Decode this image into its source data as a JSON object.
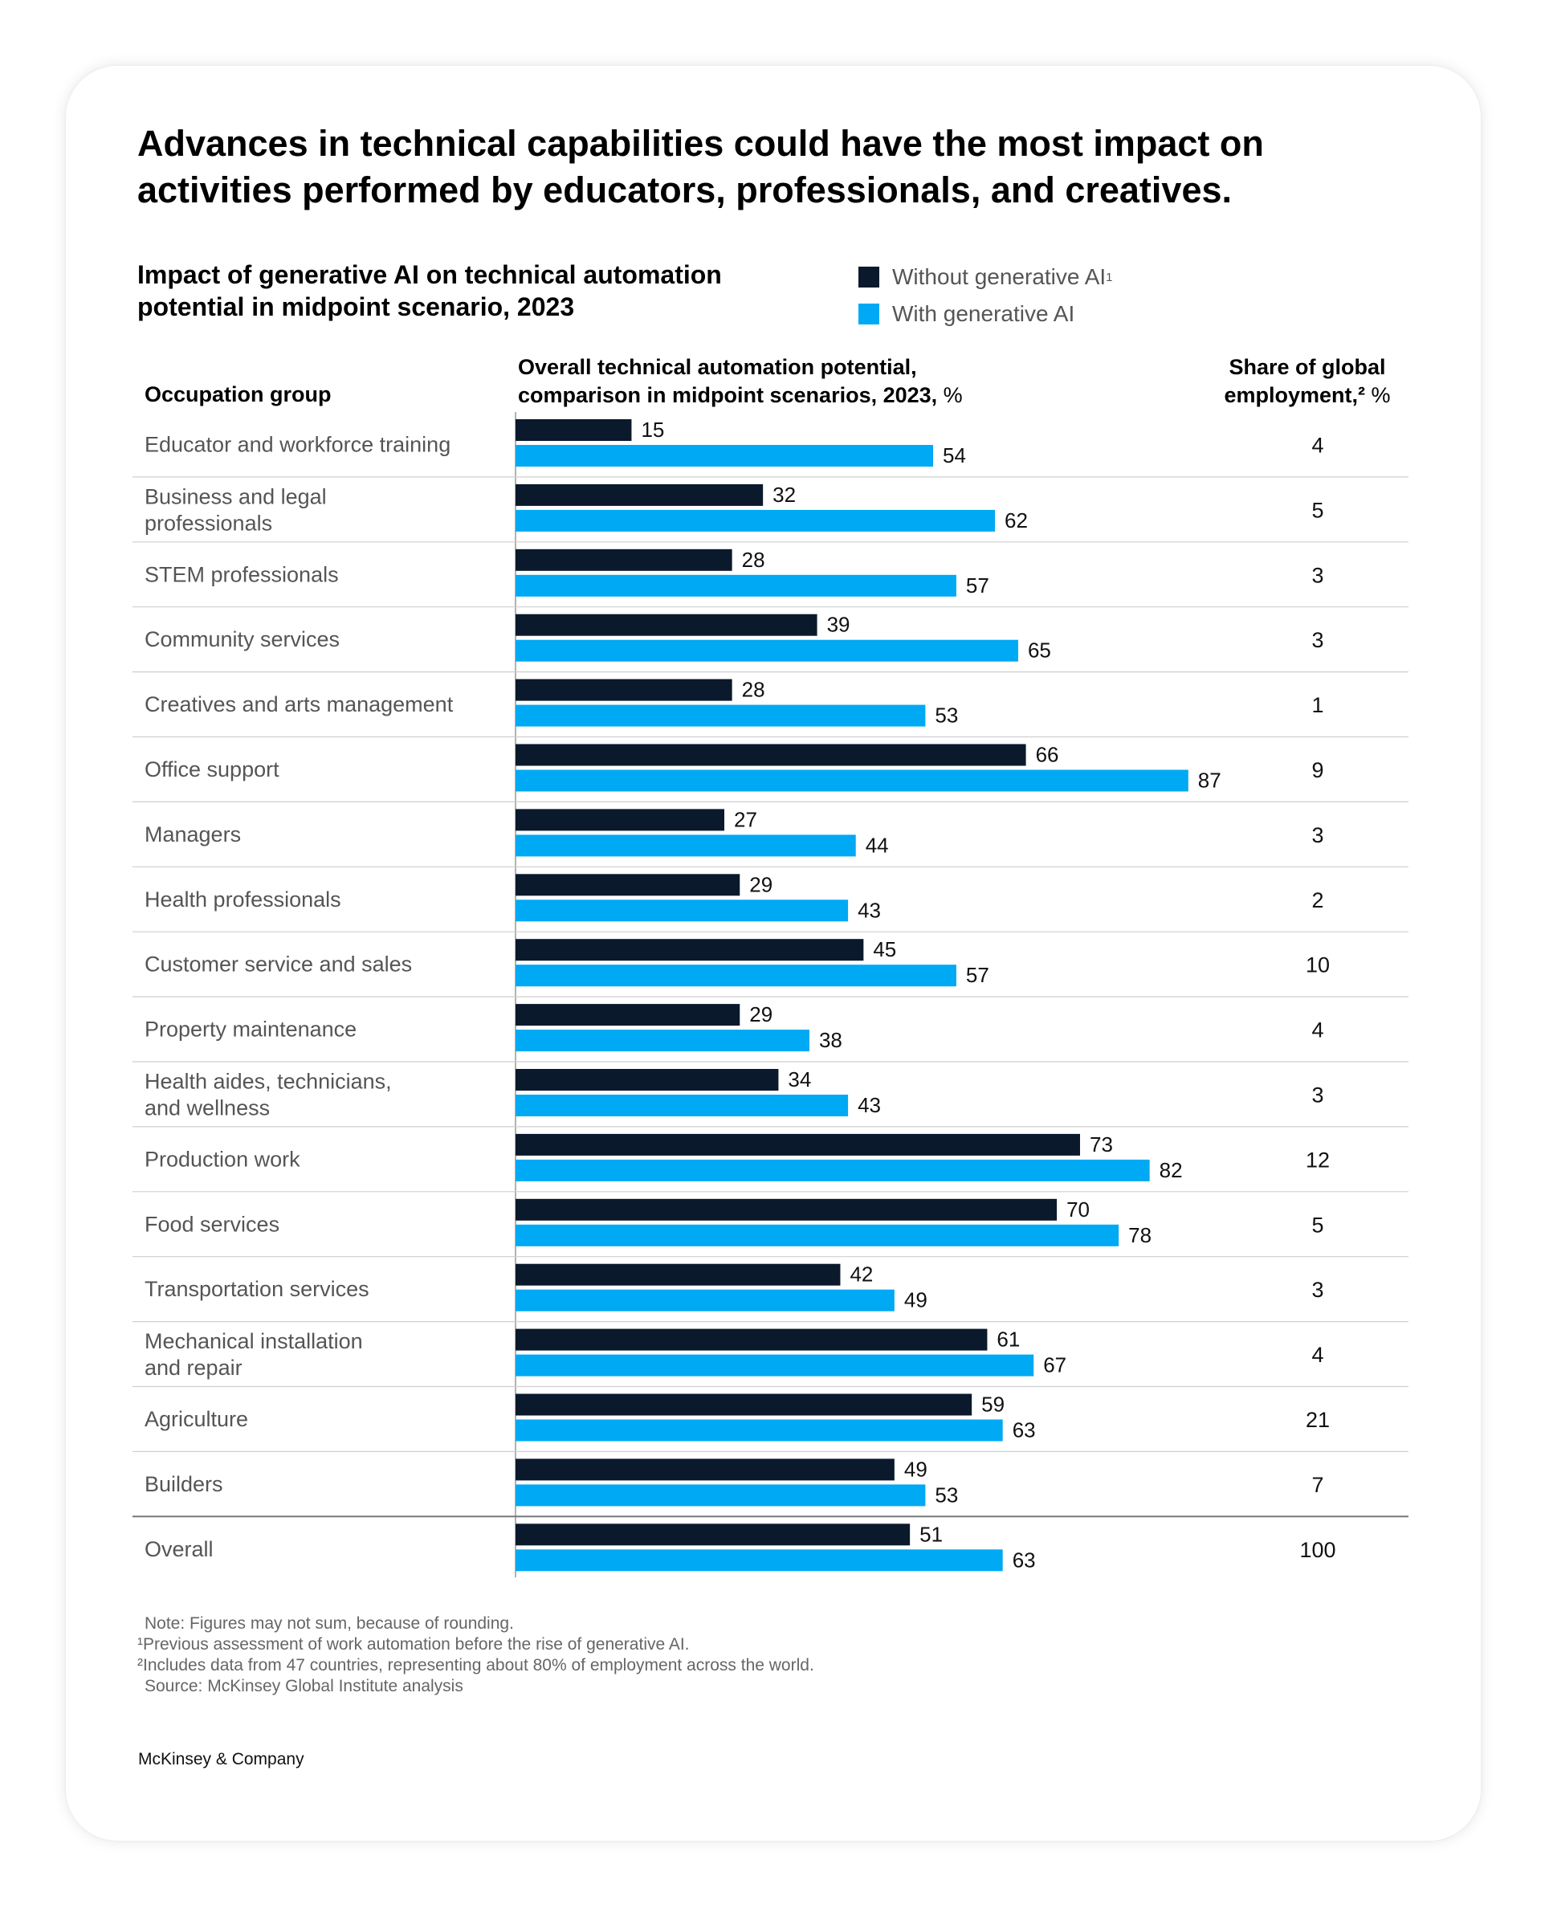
{
  "title": "Advances in technical capabilities could have the most impact on activities performed by educators, professionals, and creatives.",
  "subtitle": "Impact of generative AI on technical automation potential in midpoint scenario, 2023",
  "legend": [
    {
      "label": "Without generative AI",
      "sup": "1",
      "color": "#0a1a2c"
    },
    {
      "label": "With generative AI",
      "sup": "",
      "color": "#00a9f4"
    }
  ],
  "headers": {
    "occupation": "Occupation group",
    "automation_bold": "Overall technical automation potential, comparison in midpoint scenarios, 2023,",
    "automation_unit": "%",
    "share_bold": "Share of global employment,²",
    "share_unit": "%"
  },
  "chart_data": {
    "type": "bar",
    "orientation": "horizontal",
    "title": "Impact of generative AI on technical automation potential in midpoint scenario, 2023",
    "xlabel": "Overall technical automation potential, comparison in midpoint scenarios, 2023, %",
    "xlim": [
      0,
      100
    ],
    "categories": [
      [
        "Educator and workforce training"
      ],
      [
        "Business and legal",
        "professionals"
      ],
      [
        "STEM professionals"
      ],
      [
        "Community services"
      ],
      [
        "Creatives and arts management"
      ],
      [
        "Office support"
      ],
      [
        "Managers"
      ],
      [
        "Health professionals"
      ],
      [
        "Customer service and sales"
      ],
      [
        "Property maintenance"
      ],
      [
        "Health aides, technicians,",
        "and wellness"
      ],
      [
        "Production work"
      ],
      [
        "Food services"
      ],
      [
        "Transportation services"
      ],
      [
        "Mechanical installation",
        "and repair"
      ],
      [
        "Agriculture"
      ],
      [
        "Builders"
      ],
      [
        "Overall"
      ]
    ],
    "series": [
      {
        "name": "Without generative AI",
        "color": "#0a1a2c",
        "values": [
          15,
          32,
          28,
          39,
          28,
          66,
          27,
          29,
          45,
          29,
          34,
          73,
          70,
          42,
          61,
          59,
          49,
          51
        ]
      },
      {
        "name": "With generative AI",
        "color": "#00a9f4",
        "values": [
          54,
          62,
          57,
          65,
          53,
          87,
          44,
          43,
          57,
          38,
          43,
          82,
          78,
          49,
          67,
          63,
          53,
          63
        ]
      }
    ],
    "share_of_global_employment": [
      4,
      5,
      3,
      3,
      1,
      9,
      3,
      2,
      10,
      4,
      3,
      12,
      5,
      3,
      4,
      21,
      7,
      100
    ]
  },
  "notes": [
    "Note: Figures may not sum, because of rounding.",
    "¹Previous assessment of work automation before the rise of generative AI.",
    "²Includes data from 47 countries, representing about 80% of employment across the world.",
    "Source: McKinsey Global Institute analysis"
  ],
  "footer": "McKinsey & Company"
}
